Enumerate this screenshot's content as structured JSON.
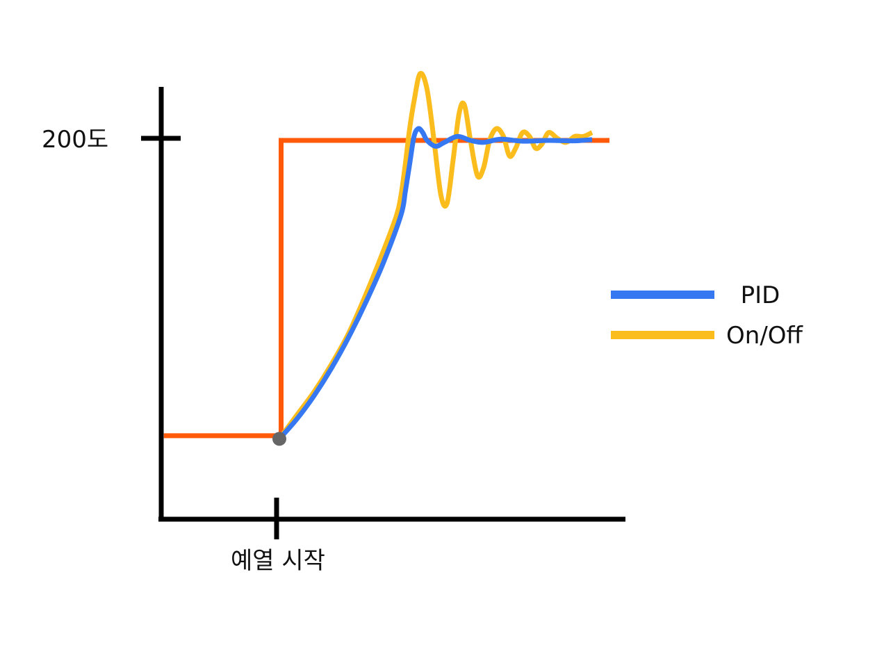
{
  "chart_data": {
    "type": "line",
    "ytick_label": "200도",
    "xtick_label": "예열 시작",
    "colors": {
      "axis": "#000000",
      "setpoint": "#ff5a0a",
      "pid": "#3578f2",
      "onoff": "#fbbd1e",
      "start_marker": "#666666"
    },
    "legend": {
      "placement": "right",
      "entries": [
        {
          "label": "PID",
          "color": "#3578f2"
        },
        {
          "label": "On/Off",
          "color": "#fbbd1e"
        }
      ]
    },
    "series": [
      {
        "name": "setpoint",
        "points": [
          [
            -1.33,
            0.248
          ],
          [
            0.02,
            0.248
          ],
          [
            0.02,
            1.0
          ],
          [
            3.8,
            1.0
          ]
        ]
      },
      {
        "name": "PID",
        "points": [
          [
            0,
            0.24
          ],
          [
            0.2,
            0.29
          ],
          [
            0.4,
            0.35
          ],
          [
            0.6,
            0.42
          ],
          [
            0.8,
            0.5
          ],
          [
            1.0,
            0.59
          ],
          [
            1.2,
            0.69
          ],
          [
            1.4,
            0.81
          ],
          [
            1.45,
            0.87
          ],
          [
            1.5,
            0.94
          ],
          [
            1.55,
            1.01
          ],
          [
            1.6,
            1.03
          ],
          [
            1.65,
            1.02
          ],
          [
            1.7,
            1.0
          ],
          [
            1.8,
            0.985
          ],
          [
            1.9,
            0.995
          ],
          [
            2.05,
            1.01
          ],
          [
            2.2,
            1.0
          ],
          [
            2.35,
            0.995
          ],
          [
            2.55,
            1.003
          ],
          [
            2.8,
            0.998
          ],
          [
            3.1,
            1.0
          ],
          [
            3.4,
            0.999
          ],
          [
            3.6,
            1.002
          ]
        ]
      },
      {
        "name": "On/Off",
        "points": [
          [
            0,
            0.24
          ],
          [
            0.2,
            0.3
          ],
          [
            0.4,
            0.36
          ],
          [
            0.6,
            0.43
          ],
          [
            0.8,
            0.51
          ],
          [
            1.0,
            0.61
          ],
          [
            1.2,
            0.72
          ],
          [
            1.35,
            0.81
          ],
          [
            1.4,
            0.86
          ],
          [
            1.45,
            0.94
          ],
          [
            1.5,
            1.03
          ],
          [
            1.55,
            1.1
          ],
          [
            1.62,
            1.17
          ],
          [
            1.7,
            1.13
          ],
          [
            1.78,
            1.0
          ],
          [
            1.86,
            0.86
          ],
          [
            1.93,
            0.84
          ],
          [
            2.0,
            0.95
          ],
          [
            2.07,
            1.07
          ],
          [
            2.13,
            1.09
          ],
          [
            2.2,
            1.0
          ],
          [
            2.28,
            0.91
          ],
          [
            2.35,
            0.93
          ],
          [
            2.42,
            1.0
          ],
          [
            2.5,
            1.03
          ],
          [
            2.58,
            1.01
          ],
          [
            2.65,
            0.96
          ],
          [
            2.72,
            0.98
          ],
          [
            2.8,
            1.02
          ],
          [
            2.88,
            1.01
          ],
          [
            2.95,
            0.98
          ],
          [
            3.02,
            0.99
          ],
          [
            3.1,
            1.02
          ],
          [
            3.2,
            1.005
          ],
          [
            3.3,
            0.995
          ],
          [
            3.4,
            1.01
          ],
          [
            3.5,
            1.01
          ],
          [
            3.6,
            1.02
          ]
        ]
      }
    ]
  }
}
